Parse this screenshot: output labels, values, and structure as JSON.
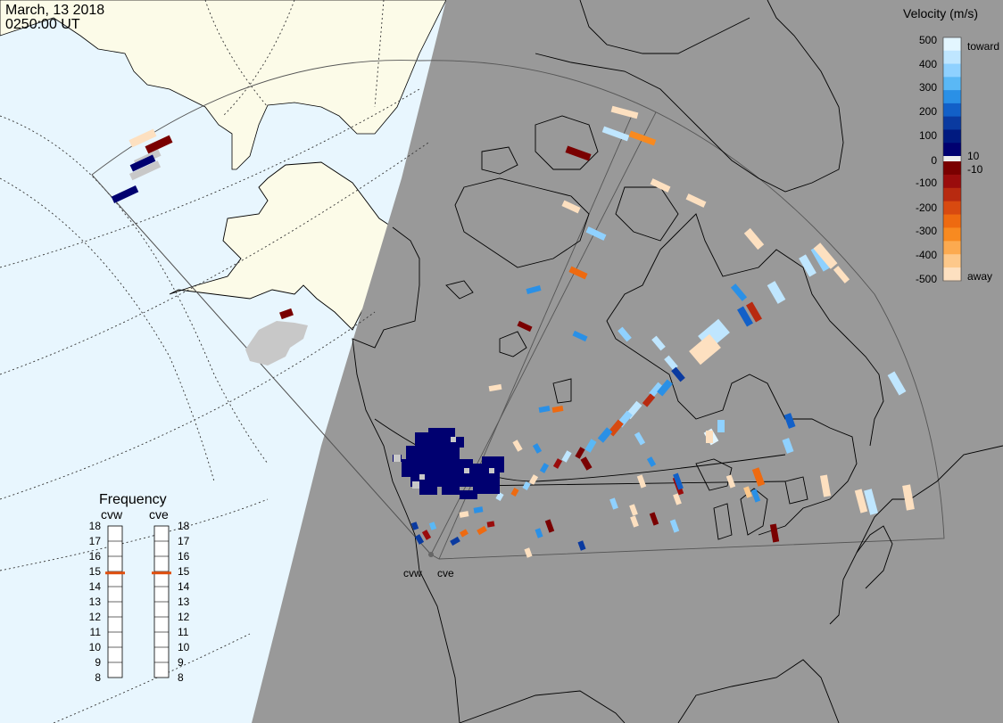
{
  "header": {
    "date": "March, 13 2018",
    "time": "0250:00 UT"
  },
  "velocity_legend": {
    "title": "Velocity (m/s)",
    "ticks": [
      "500",
      "400",
      "300",
      "200",
      "100",
      "10",
      "0",
      "-10",
      "-100",
      "-200",
      "-300",
      "-400",
      "-500"
    ],
    "toward_label": "toward",
    "away_label": "away",
    "colors": {
      "toward_scale": [
        "#e3f6ff",
        "#bfe6ff",
        "#8fd1ff",
        "#5ab8f5",
        "#2a90e6",
        "#1260c8",
        "#0a3aa0",
        "#001a80",
        "#000070"
      ],
      "away_scale": [
        "#7a0000",
        "#9a0c0c",
        "#b82a10",
        "#d84a10",
        "#ee6a10",
        "#f88a20",
        "#fcaa50",
        "#fdc88a",
        "#fde0c0"
      ]
    }
  },
  "frequency_legend": {
    "title": "Frequency",
    "radars": [
      {
        "code": "cvw",
        "selected": 14.9
      },
      {
        "code": "cve",
        "selected": 14.9
      }
    ],
    "ticks": [
      "18",
      "17",
      "16",
      "15",
      "14",
      "13",
      "12",
      "11",
      "10",
      "9",
      "8"
    ],
    "indicator_color": "#e05010"
  },
  "map": {
    "radar_sites": [
      "cvw",
      "cve"
    ],
    "night_color": "#999999",
    "ocean_color": "#e8f6fe",
    "land_color": "#fcfbe8",
    "ground_scatter_color": "#c8c8c8"
  }
}
